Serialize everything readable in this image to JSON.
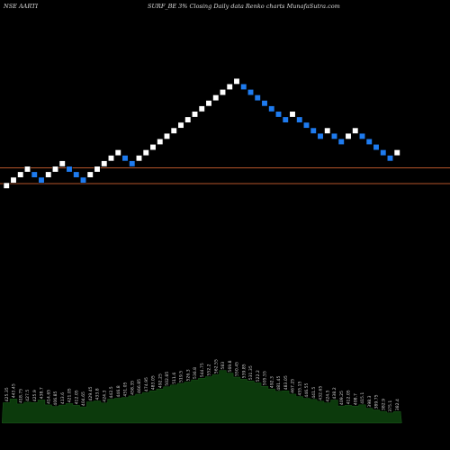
{
  "header": {
    "left": "NSE AARTI",
    "middle": "SURF_BE 3% Closing Daily data Renko charts MunafaSutra.com"
  },
  "colors": {
    "background": "#000000",
    "up_brick": "#ffffff",
    "down_brick": "#1e7bef",
    "support_line": "#b5552a",
    "volume_fill": "#0c3a0c"
  },
  "chart_data": {
    "type": "renko",
    "brick_directions": [
      "up",
      "up",
      "up",
      "up",
      "down",
      "down",
      "up",
      "up",
      "up",
      "down",
      "down",
      "down",
      "up",
      "up",
      "up",
      "up",
      "up",
      "down",
      "down",
      "up",
      "up",
      "up",
      "up",
      "up",
      "up",
      "up",
      "up",
      "up",
      "up",
      "up",
      "up",
      "up",
      "up",
      "up",
      "down",
      "down",
      "down",
      "down",
      "down",
      "down",
      "down",
      "up",
      "down",
      "down",
      "down",
      "down",
      "up",
      "down",
      "down",
      "up",
      "up",
      "down",
      "down",
      "down",
      "down",
      "down",
      "up"
    ],
    "horizontal_lines": [
      "upper",
      "lower"
    ],
    "volume_labels": [
      "425.35",
      "443.45",
      "418.75",
      "427.5",
      "425.9",
      "438.7",
      "414.65",
      "406.85",
      "413.6",
      "421.05",
      "412.05",
      "404.65",
      "429.45",
      "433.8",
      "424.3",
      "442.5",
      "446.8",
      "451.05",
      "458.35",
      "466.85",
      "474.95",
      "483.05",
      "492.25",
      "502.85",
      "511.6",
      "519.5",
      "526.3",
      "536.8",
      "544.75",
      "552.2",
      "562.55",
      "583",
      "569.8",
      "550.45",
      "539.85",
      "531.35",
      "522.2",
      "505.55",
      "492.3",
      "481.45",
      "483.05",
      "467.25",
      "455.15",
      "446.55",
      "441.5",
      "432.65",
      "424.5",
      "438.2",
      "409.25",
      "412.05",
      "408.7",
      "415.1",
      "398.3",
      "389.75",
      "382.9",
      "375.1",
      "382.4"
    ]
  }
}
